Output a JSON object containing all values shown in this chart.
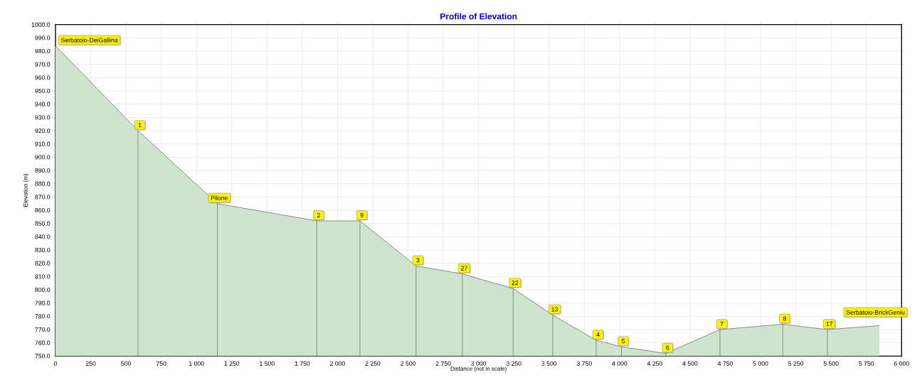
{
  "chart_data": {
    "type": "area",
    "title": "Profile of Elevation",
    "xlabel": "Distance (not in scale)",
    "ylabel": "Elevation (m)",
    "x": [
      0,
      585,
      1148,
      1853,
      2159,
      2557,
      2885,
      3245,
      3526,
      3834,
      4013,
      4327,
      4712,
      5157,
      5474,
      5842
    ],
    "values": [
      984,
      920,
      865,
      852,
      852,
      818,
      812,
      801,
      781,
      762,
      757,
      752,
      770,
      774,
      770,
      773
    ],
    "color": "#cfe4cf",
    "grid": true,
    "xlim": [
      0,
      6000
    ],
    "ylim": [
      750,
      1000
    ],
    "xticks": [
      0,
      250,
      500,
      750,
      {
        "value": 1000,
        "label": "1 000"
      },
      {
        "value": 1250,
        "label": "1 250"
      },
      {
        "value": 1500,
        "label": "1 500"
      },
      {
        "value": 1750,
        "label": "1 750"
      },
      {
        "value": 2000,
        "label": "2 000"
      },
      {
        "value": 2250,
        "label": "2 250"
      },
      {
        "value": 2500,
        "label": "2 500"
      },
      {
        "value": 2750,
        "label": "2 750"
      },
      {
        "value": 3000,
        "label": "3 000"
      },
      {
        "value": 3250,
        "label": "3 250"
      },
      {
        "value": 3500,
        "label": "3 500"
      },
      {
        "value": 3750,
        "label": "3 750"
      },
      {
        "value": 4000,
        "label": "4 000"
      },
      {
        "value": 4250,
        "label": "4 250"
      },
      {
        "value": 4500,
        "label": "4 500"
      },
      {
        "value": 4750,
        "label": "4 750"
      },
      {
        "value": 5000,
        "label": "5 000"
      },
      {
        "value": 5250,
        "label": "5 250"
      },
      {
        "value": 5500,
        "label": "5 500"
      },
      {
        "value": 5750,
        "label": "5 750"
      },
      {
        "value": 6000,
        "label": "6 000"
      }
    ],
    "yticks": [
      {
        "value": 750,
        "label": "750.0"
      },
      {
        "value": 760,
        "label": "760.0"
      },
      {
        "value": 770,
        "label": "770.0"
      },
      {
        "value": 780,
        "label": "780.0"
      },
      {
        "value": 790,
        "label": "790.0"
      },
      {
        "value": 800,
        "label": "800.0"
      },
      {
        "value": 810,
        "label": "810.0"
      },
      {
        "value": 820,
        "label": "820.0"
      },
      {
        "value": 830,
        "label": "830.0"
      },
      {
        "value": 840,
        "label": "840.0"
      },
      {
        "value": 850,
        "label": "850.0"
      },
      {
        "value": 860,
        "label": "860.0"
      },
      {
        "value": 870,
        "label": "870.0"
      },
      {
        "value": 880,
        "label": "880.0"
      },
      {
        "value": 890,
        "label": "890.0"
      },
      {
        "value": 900,
        "label": "900.0"
      },
      {
        "value": 910,
        "label": "910.0"
      },
      {
        "value": 920,
        "label": "920.0"
      },
      {
        "value": 930,
        "label": "930.0"
      },
      {
        "value": 940,
        "label": "940.0"
      },
      {
        "value": 950,
        "label": "950.0"
      },
      {
        "value": 960,
        "label": "960.0"
      },
      {
        "value": 970,
        "label": "970.0"
      },
      {
        "value": 980,
        "label": "980.0"
      },
      {
        "value": 990,
        "label": "990.0"
      },
      {
        "value": 1000,
        "label": "1000.0"
      }
    ],
    "annotations": [
      {
        "text": "Serbatoio-DeiGallina",
        "x": 0,
        "y": 984
      },
      {
        "text": "1",
        "x": 585,
        "y": 920
      },
      {
        "text": "Pilone",
        "x": 1148,
        "y": 865
      },
      {
        "text": "2",
        "x": 1853,
        "y": 852
      },
      {
        "text": "9",
        "x": 2159,
        "y": 852
      },
      {
        "text": "3",
        "x": 2557,
        "y": 818
      },
      {
        "text": "27",
        "x": 2885,
        "y": 812
      },
      {
        "text": "22",
        "x": 3245,
        "y": 801
      },
      {
        "text": "13",
        "x": 3526,
        "y": 781
      },
      {
        "text": "4",
        "x": 3834,
        "y": 762
      },
      {
        "text": "5",
        "x": 4013,
        "y": 757
      },
      {
        "text": "6",
        "x": 4327,
        "y": 752
      },
      {
        "text": "7",
        "x": 4712,
        "y": 770
      },
      {
        "text": "8",
        "x": 5157,
        "y": 774
      },
      {
        "text": "17",
        "x": 5474,
        "y": 770
      },
      {
        "text": "Serbatoio-BrickGeniu",
        "x": 5842,
        "y": 773
      }
    ]
  }
}
